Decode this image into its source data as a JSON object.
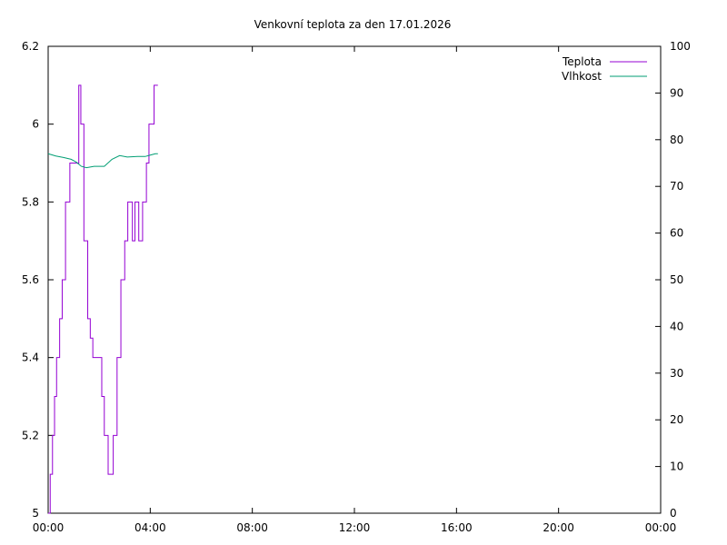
{
  "chart_data": {
    "type": "line",
    "title": "Venkovní teplota za den 17.01.2026",
    "x_unit": "hours",
    "xlim": [
      0,
      24
    ],
    "x_tick_labels": [
      "00:00",
      "04:00",
      "08:00",
      "12:00",
      "16:00",
      "20:00",
      "00:00"
    ],
    "y_left": {
      "lim": [
        5,
        6.2
      ],
      "ticks": [
        "5",
        "5.2",
        "5.4",
        "5.6",
        "5.8",
        "6",
        "6.2"
      ]
    },
    "y_right": {
      "lim": [
        0,
        100
      ],
      "ticks": [
        "0",
        "10",
        "20",
        "30",
        "40",
        "50",
        "60",
        "70",
        "80",
        "90",
        "100"
      ]
    },
    "grid": false,
    "legend": "top-right",
    "series": [
      {
        "name": "Teplota",
        "axis": "left",
        "color": "#9400d3",
        "x": [
          0.0,
          0.08,
          0.08,
          0.17,
          0.17,
          0.25,
          0.25,
          0.33,
          0.33,
          0.45,
          0.45,
          0.55,
          0.55,
          0.68,
          0.68,
          0.85,
          0.85,
          1.2,
          1.2,
          1.28,
          1.28,
          1.4,
          1.4,
          1.55,
          1.55,
          1.65,
          1.65,
          1.75,
          1.75,
          2.1,
          2.1,
          2.2,
          2.2,
          2.35,
          2.35,
          2.55,
          2.55,
          2.7,
          2.7,
          2.85,
          2.85,
          3.0,
          3.0,
          3.12,
          3.12,
          3.3,
          3.3,
          3.4,
          3.4,
          3.55,
          3.55,
          3.7,
          3.7,
          3.85,
          3.85,
          3.95,
          3.95,
          4.15,
          4.15,
          4.3
        ],
        "y": [
          5.0,
          5.0,
          5.1,
          5.1,
          5.2,
          5.2,
          5.3,
          5.3,
          5.4,
          5.4,
          5.5,
          5.5,
          5.6,
          5.6,
          5.8,
          5.8,
          5.9,
          5.9,
          6.1,
          6.1,
          6.0,
          6.0,
          5.7,
          5.7,
          5.5,
          5.5,
          5.45,
          5.45,
          5.4,
          5.4,
          5.3,
          5.3,
          5.2,
          5.2,
          5.1,
          5.1,
          5.2,
          5.2,
          5.4,
          5.4,
          5.6,
          5.6,
          5.7,
          5.7,
          5.8,
          5.8,
          5.7,
          5.7,
          5.8,
          5.8,
          5.7,
          5.7,
          5.8,
          5.8,
          5.9,
          5.9,
          6.0,
          6.0,
          6.1,
          6.1
        ]
      },
      {
        "name": "Vlhkost",
        "axis": "right",
        "color": "#009e73",
        "x": [
          0.0,
          0.3,
          0.6,
          0.9,
          1.1,
          1.3,
          1.5,
          1.8,
          2.2,
          2.5,
          2.8,
          3.1,
          3.5,
          3.8,
          4.0,
          4.2,
          4.3
        ],
        "y": [
          77,
          76.5,
          76.2,
          75.8,
          75.2,
          74.3,
          74.0,
          74.3,
          74.3,
          75.8,
          76.6,
          76.3,
          76.4,
          76.4,
          76.7,
          77.0,
          77.0
        ]
      }
    ]
  }
}
